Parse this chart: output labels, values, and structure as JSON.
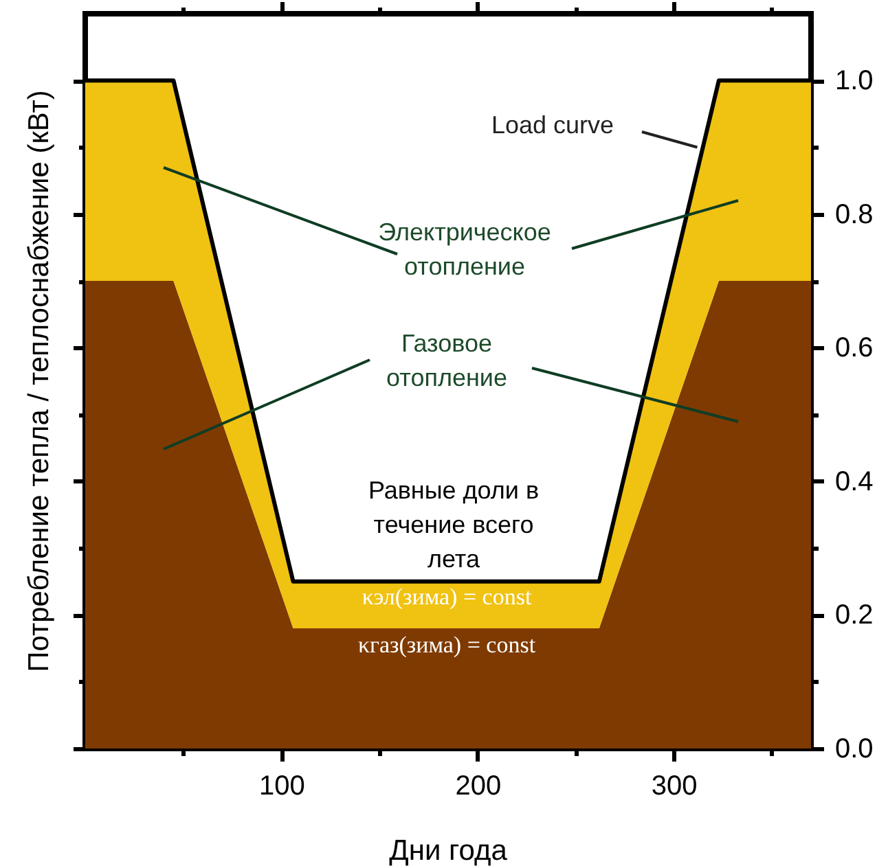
{
  "chart_data": {
    "type": "area",
    "stacked": true,
    "xlabel": "Дни года",
    "ylabel": "Потребление тепла / теплоснабжение (кВт)",
    "x": [
      0,
      45,
      106,
      262,
      323,
      370
    ],
    "series": [
      {
        "color": "#7f3a02",
        "values": [
          0.7,
          0.7,
          0.18,
          0.18,
          0.7,
          0.7
        ]
      },
      {
        "color": "#f0c212",
        "values": [
          0.3,
          0.3,
          0.07,
          0.07,
          0.3,
          0.3
        ]
      }
    ],
    "xlim": [
      0,
      370
    ],
    "xticks": [
      {
        "value": 50,
        "label": null
      },
      100,
      {
        "value": 150,
        "label": null
      },
      200,
      {
        "value": 250,
        "label": null
      },
      300,
      {
        "value": 350,
        "label": null
      }
    ],
    "ylim": [
      0,
      1.1
    ],
    "yticks": [
      {
        "value": 0,
        "label": "0.0"
      },
      {
        "value": 0.1,
        "label": null
      },
      {
        "value": 0.2,
        "label": "0.2"
      },
      {
        "value": 0.3,
        "label": null
      },
      {
        "value": 0.4,
        "label": "0.4"
      },
      {
        "value": 0.5,
        "label": null
      },
      {
        "value": 0.6,
        "label": "0.6"
      },
      {
        "value": 0.7,
        "label": null
      },
      {
        "value": 0.8,
        "label": "0.8"
      },
      {
        "value": 0.9,
        "label": null
      },
      {
        "value": 1.0,
        "label": "1.0"
      }
    ],
    "annotations": [
      {
        "text": "Load curve",
        "x": 312,
        "y": 0.9
      },
      "Электрическое\nотопление",
      "Газовое\nотопление",
      "Равные доли в\nтечение всего\nлета",
      "κэл(зима) = const",
      "κгаз(зима) = const"
    ],
    "grid": false,
    "line_style": "solid"
  }
}
